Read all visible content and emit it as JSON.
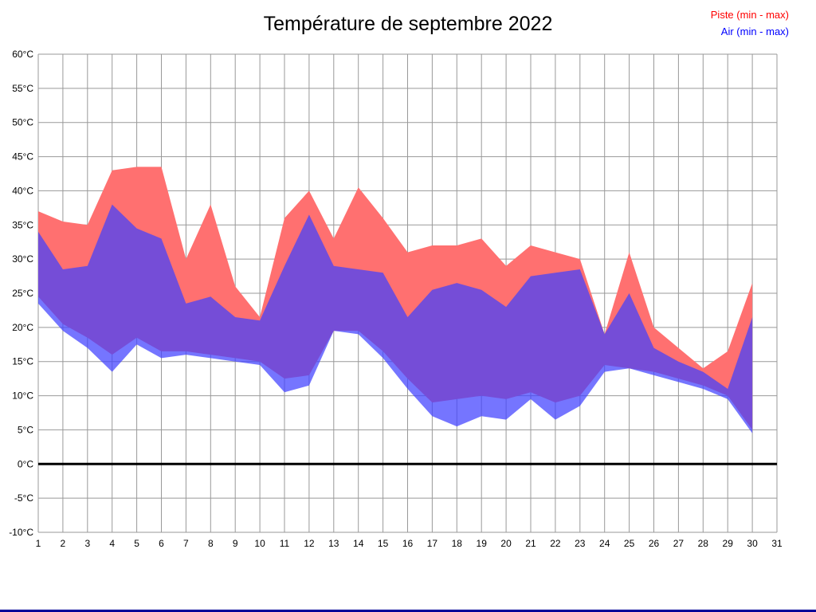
{
  "page": {
    "background": "#ffffff",
    "bottom_border_color": "#000099"
  },
  "chart_data": {
    "type": "area",
    "title": "Température de septembre 2022",
    "x": [
      1,
      2,
      3,
      4,
      5,
      6,
      7,
      8,
      9,
      10,
      11,
      12,
      13,
      14,
      15,
      16,
      17,
      18,
      19,
      20,
      21,
      22,
      23,
      24,
      25,
      26,
      27,
      28,
      29,
      30
    ],
    "x_axis": {
      "min": 1,
      "max": 31,
      "tick_step": 1
    },
    "y_axis": {
      "min": -10,
      "max": 60,
      "tick_step": 5,
      "unit": "°C"
    },
    "grid": true,
    "grid_color": "#999999",
    "axis_text_color": "#000000",
    "zero_line": 0,
    "legend_position": "top-right",
    "series": [
      {
        "name": "Piste (min - max)",
        "legend_color": "#ff0000",
        "fill_color": "#ff7070",
        "fill_opacity": 1,
        "max": [
          37,
          35.5,
          35,
          43,
          43.5,
          43.5,
          30,
          38,
          26,
          21.5,
          36,
          40,
          33,
          40.5,
          36,
          31,
          32,
          32,
          33,
          29,
          32,
          31,
          30,
          19,
          31,
          20,
          17,
          14,
          16.5,
          26.5
        ],
        "min": [
          24.5,
          20.5,
          18.5,
          16,
          18.5,
          16.5,
          16.5,
          16,
          15.5,
          15,
          12.5,
          13,
          19.5,
          19.5,
          16.5,
          12.5,
          9,
          9.5,
          10,
          9.5,
          10.5,
          9,
          10,
          14.5,
          14,
          13.5,
          12.5,
          11.5,
          10,
          5
        ]
      },
      {
        "name": "Air (min - max)",
        "legend_color": "#0000ff",
        "fill_color": "#4040ff",
        "fill_opacity": 0.72,
        "max": [
          34,
          28.5,
          29,
          38,
          34.5,
          33,
          23.5,
          24.5,
          21.5,
          21,
          29,
          36.5,
          29,
          28.5,
          28,
          21.5,
          25.5,
          26.5,
          25.5,
          23,
          27.5,
          28,
          28.5,
          19,
          25,
          17,
          15,
          13.5,
          11,
          21.5
        ],
        "min": [
          23.5,
          19.5,
          17,
          13.5,
          17.5,
          15.5,
          16,
          15.5,
          15,
          14.5,
          10.5,
          11.5,
          19.5,
          19,
          15.5,
          11,
          7,
          5.5,
          7,
          6.5,
          9.5,
          6.5,
          8.5,
          13.5,
          14,
          13,
          12,
          11,
          9.5,
          4.5
        ]
      }
    ]
  }
}
